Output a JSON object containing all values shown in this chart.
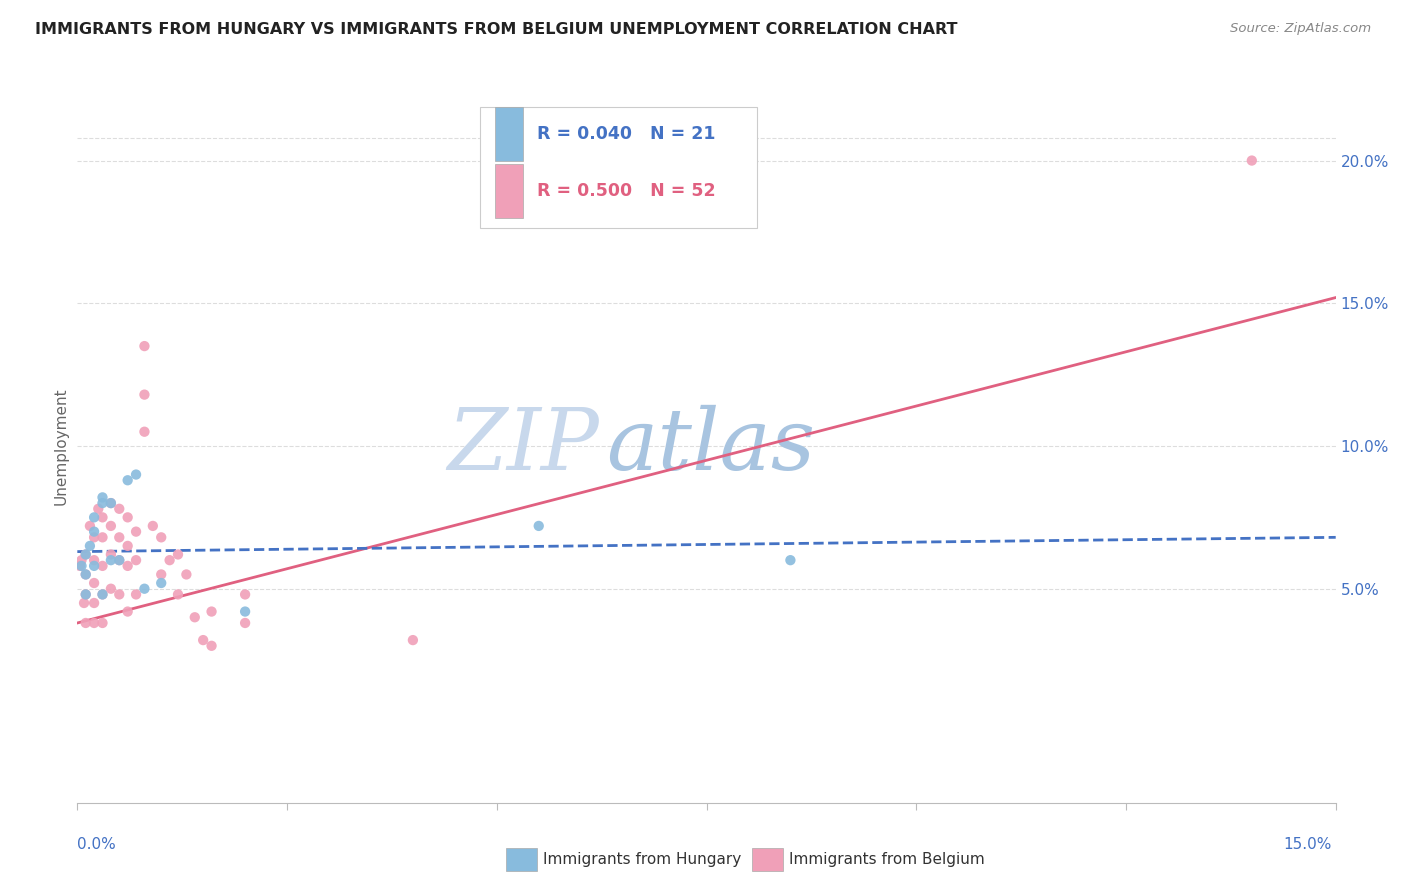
{
  "title": "IMMIGRANTS FROM HUNGARY VS IMMIGRANTS FROM BELGIUM UNEMPLOYMENT CORRELATION CHART",
  "source": "Source: ZipAtlas.com",
  "ylabel": "Unemployment",
  "legend_hungary": "Immigrants from Hungary",
  "legend_belgium": "Immigrants from Belgium",
  "hungary_R": "0.040",
  "hungary_N": "21",
  "belgium_R": "0.500",
  "belgium_N": "52",
  "color_hungary": "#88bbdd",
  "color_belgium": "#f0a0b8",
  "line_color_hungary": "#4472c4",
  "line_color_belgium": "#e06080",
  "watermark_zip_color": "#c8d8e8",
  "watermark_atlas_color": "#c8d8e8",
  "background_color": "#ffffff",
  "grid_color": "#dddddd",
  "title_color": "#222222",
  "right_axis_color": "#4472c4",
  "right_yticks": [
    "5.0%",
    "10.0%",
    "15.0%",
    "20.0%"
  ],
  "right_ytick_vals": [
    0.05,
    0.1,
    0.15,
    0.2
  ],
  "xlim": [
    0.0,
    0.15
  ],
  "ylim": [
    -0.025,
    0.225
  ],
  "hungary_scatter": {
    "x": [
      0.0005,
      0.001,
      0.001,
      0.001,
      0.0015,
      0.002,
      0.002,
      0.002,
      0.003,
      0.003,
      0.003,
      0.004,
      0.004,
      0.005,
      0.006,
      0.007,
      0.008,
      0.01,
      0.02,
      0.055,
      0.085
    ],
    "y": [
      0.058,
      0.062,
      0.055,
      0.048,
      0.065,
      0.07,
      0.075,
      0.058,
      0.08,
      0.082,
      0.048,
      0.08,
      0.06,
      0.06,
      0.088,
      0.09,
      0.05,
      0.052,
      0.042,
      0.072,
      0.06
    ]
  },
  "belgium_scatter": {
    "x": [
      0.0003,
      0.0005,
      0.0008,
      0.001,
      0.001,
      0.001,
      0.001,
      0.0015,
      0.002,
      0.002,
      0.002,
      0.002,
      0.002,
      0.0025,
      0.003,
      0.003,
      0.003,
      0.003,
      0.003,
      0.004,
      0.004,
      0.004,
      0.004,
      0.005,
      0.005,
      0.005,
      0.005,
      0.006,
      0.006,
      0.006,
      0.006,
      0.007,
      0.007,
      0.007,
      0.008,
      0.008,
      0.008,
      0.009,
      0.01,
      0.01,
      0.011,
      0.012,
      0.012,
      0.013,
      0.014,
      0.015,
      0.016,
      0.016,
      0.02,
      0.02,
      0.04,
      0.14
    ],
    "y": [
      0.058,
      0.06,
      0.045,
      0.062,
      0.055,
      0.048,
      0.038,
      0.072,
      0.068,
      0.06,
      0.052,
      0.045,
      0.038,
      0.078,
      0.075,
      0.068,
      0.058,
      0.048,
      0.038,
      0.08,
      0.072,
      0.062,
      0.05,
      0.078,
      0.068,
      0.06,
      0.048,
      0.075,
      0.065,
      0.058,
      0.042,
      0.07,
      0.06,
      0.048,
      0.135,
      0.118,
      0.105,
      0.072,
      0.068,
      0.055,
      0.06,
      0.062,
      0.048,
      0.055,
      0.04,
      0.032,
      0.042,
      0.03,
      0.048,
      0.038,
      0.032,
      0.2
    ]
  },
  "hungary_line": {
    "x0": 0.0,
    "x1": 0.15,
    "y0": 0.063,
    "y1": 0.068
  },
  "belgium_line": {
    "x0": 0.0,
    "x1": 0.15,
    "y0": 0.038,
    "y1": 0.152
  }
}
